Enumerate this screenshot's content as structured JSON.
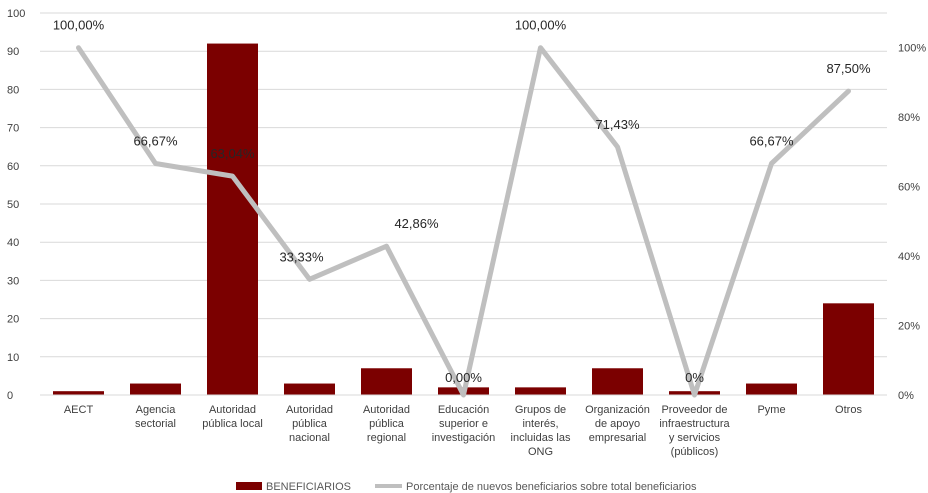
{
  "chart_data": {
    "type": "bar",
    "categories": [
      [
        "AECT"
      ],
      [
        "Agencia",
        "sectorial"
      ],
      [
        "Autoridad",
        "pública local"
      ],
      [
        "Autoridad",
        "pública",
        "nacional"
      ],
      [
        "Autoridad",
        "pública",
        "regional"
      ],
      [
        "Educación",
        "superior e",
        "investigación"
      ],
      [
        "Grupos de",
        "interés,",
        "incluidas las",
        "ONG"
      ],
      [
        "Organización",
        "de apoyo",
        "empresarial"
      ],
      [
        "Proveedor de",
        "infraestructura",
        "y servicios",
        "(públicos)"
      ],
      [
        "Pyme"
      ],
      [
        "Otros"
      ]
    ],
    "series": [
      {
        "name": "BENEFICIARIOS",
        "type": "bar",
        "axis": "left",
        "color": "#7B0000",
        "values": [
          1,
          3,
          92,
          3,
          7,
          2,
          2,
          7,
          1,
          3,
          24
        ]
      },
      {
        "name": "Porcentaje de nuevos beneficiarios sobre total beneficiarios",
        "type": "line",
        "axis": "right",
        "color": "#BFBFBF",
        "values": [
          100,
          66.67,
          63.04,
          33.33,
          42.86,
          0,
          100,
          71.43,
          0,
          66.67,
          87.5
        ],
        "labels": [
          "100,00%",
          "66,67%",
          "63,04%",
          "33,33%",
          "42,86%",
          "0,00%",
          "100,00%",
          "71,43%",
          "0%",
          "66,67%",
          "87,50%"
        ],
        "label_colors": [
          "#262626",
          "#262626",
          "#ffffff",
          "#262626",
          "#262626",
          "#262626",
          "#262626",
          "#262626",
          "#262626",
          "#262626",
          "#262626"
        ]
      }
    ],
    "y_left": {
      "range": [
        0,
        100
      ],
      "ticks": [
        "0",
        "10",
        "20",
        "30",
        "40",
        "50",
        "60",
        "70",
        "80",
        "90",
        "100"
      ]
    },
    "y_right": {
      "range": [
        0,
        110
      ],
      "ticks": [
        "0%",
        "20%",
        "40%",
        "60%",
        "80%",
        "100%"
      ]
    },
    "grid": true,
    "legend_position": "bottom"
  }
}
